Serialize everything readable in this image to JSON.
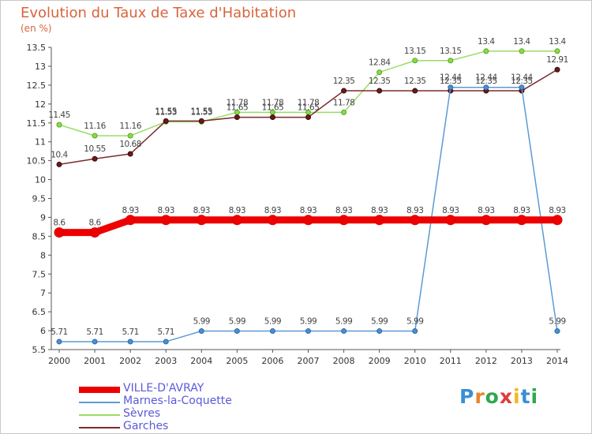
{
  "title": "Evolution du Taux de Taxe d'Habitation",
  "subtitle": "(en %)",
  "logo": "Proxiti",
  "chart_data": {
    "type": "line",
    "title": "Evolution du Taux de Taxe d'Habitation",
    "ylabel": "(en %)",
    "xlabel": "",
    "x": [
      "2000",
      "2001",
      "2002",
      "2003",
      "2004",
      "2005",
      "2006",
      "2007",
      "2008",
      "2009",
      "2010",
      "2011",
      "2012",
      "2013",
      "2014"
    ],
    "ylim": [
      5.5,
      13.5
    ],
    "yticks": [
      "5.5",
      "6",
      "6.5",
      "7",
      "7.5",
      "8",
      "8.5",
      "9",
      "9.5",
      "10",
      "10.5",
      "11",
      "11.5",
      "12",
      "12.5",
      "13",
      "13.5"
    ],
    "grid": false,
    "legend": "bottom-left",
    "series": [
      {
        "name": "VILLE-D'AVRAY",
        "color": "#ee0000",
        "values": [
          8.6,
          8.6,
          8.93,
          8.93,
          8.93,
          8.93,
          8.93,
          8.93,
          8.93,
          8.93,
          8.93,
          8.93,
          8.93,
          8.93,
          8.93
        ],
        "labels": [
          "8.6",
          "8.6",
          "8.93",
          "8.93",
          "8.93",
          "8.93",
          "8.93",
          "8.93",
          "8.93",
          "8.93",
          "8.93",
          "8.93",
          "8.93",
          "8.93",
          "8.93"
        ]
      },
      {
        "name": "Marnes-la-Coquette",
        "color": "#5b9bd5",
        "values": [
          5.71,
          5.71,
          5.71,
          5.71,
          5.99,
          5.99,
          5.99,
          5.99,
          5.99,
          5.99,
          5.99,
          12.44,
          12.44,
          12.44,
          5.99
        ],
        "labels": [
          "5.71",
          "5.71",
          "5.71",
          "5.71",
          "5.99",
          "5.99",
          "5.99",
          "5.99",
          "5.99",
          "5.99",
          "5.99",
          "12.44",
          "12.44",
          "12.44",
          "5.99"
        ]
      },
      {
        "name": "Sèvres",
        "color": "#99dd66",
        "values": [
          11.45,
          11.16,
          11.16,
          11.53,
          11.53,
          11.78,
          11.78,
          11.78,
          11.78,
          12.84,
          13.15,
          13.15,
          13.4,
          13.4,
          13.4
        ],
        "labels": [
          "11.45",
          "11.16",
          "11.16",
          "11.53",
          "11.53",
          "11.78",
          "11.78",
          "11.78",
          "11.78",
          "12.84",
          "13.15",
          "13.15",
          "13.4",
          "13.4",
          "13.4"
        ]
      },
      {
        "name": "Garches",
        "color": "#7a2a2a",
        "values": [
          10.4,
          10.55,
          10.68,
          11.55,
          11.55,
          11.65,
          11.65,
          11.65,
          12.35,
          12.35,
          12.35,
          12.35,
          12.35,
          12.35,
          12.91
        ],
        "labels": [
          "10.4",
          "10.55",
          "10.68",
          "11.55",
          "11.55",
          "11.65",
          "11.65",
          "11.65",
          "12.35",
          "12.35",
          "12.35",
          "12.35",
          "12.35",
          "12.35",
          "12.91"
        ]
      }
    ]
  },
  "legend": {
    "items": [
      {
        "label": "VILLE-D'AVRAY",
        "color": "#ee0000"
      },
      {
        "label": "Marnes-la-Coquette",
        "color": "#5b9bd5"
      },
      {
        "label": "Sèvres",
        "color": "#99dd66"
      },
      {
        "label": "Garches",
        "color": "#7a2a2a"
      }
    ]
  }
}
